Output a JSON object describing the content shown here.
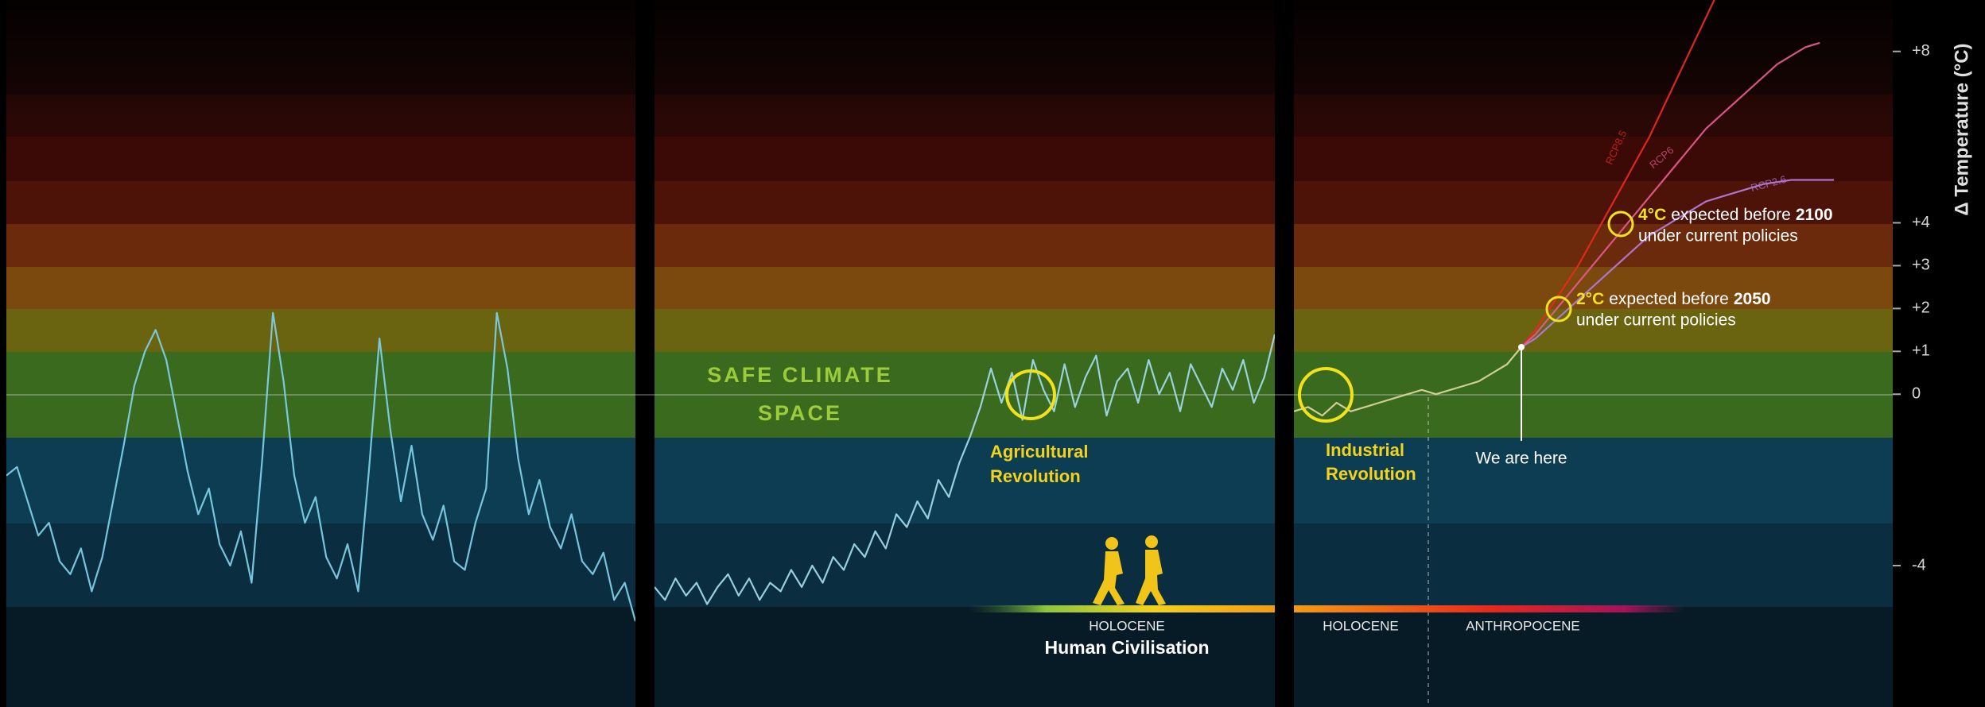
{
  "chart_data": [
    {
      "type": "line",
      "ylim": [
        -7.3,
        9.2
      ],
      "series": [
        {
          "color": "#7ccde6",
          "values": [
            -1.9,
            -1.7,
            -2.5,
            -3.3,
            -3.0,
            -3.9,
            -4.2,
            -3.6,
            -4.6,
            -3.8,
            -2.5,
            -1.2,
            0.2,
            1.0,
            1.5,
            0.8,
            -0.5,
            -1.8,
            -2.8,
            -2.2,
            -3.5,
            -4.0,
            -3.2,
            -4.4,
            -1.5,
            1.9,
            0.3,
            -1.9,
            -3.0,
            -2.4,
            -3.8,
            -4.3,
            -3.5,
            -4.6,
            -1.8,
            1.3,
            -0.8,
            -2.5,
            -1.2,
            -2.8,
            -3.4,
            -2.6,
            -3.9,
            -4.1,
            -3.0,
            -2.2,
            1.9,
            0.6,
            -1.5,
            -2.8,
            -2.0,
            -3.1,
            -3.6,
            -2.8,
            -3.9,
            -4.2,
            -3.7,
            -4.8,
            -4.4,
            -5.3
          ]
        }
      ]
    },
    {
      "type": "line",
      "ylim": [
        -7.3,
        9.2
      ],
      "series": [
        {
          "color": "#9fd8e8",
          "values": [
            -4.5,
            -4.8,
            -4.3,
            -4.7,
            -4.4,
            -4.9,
            -4.5,
            -4.2,
            -4.7,
            -4.3,
            -4.8,
            -4.4,
            -4.6,
            -4.1,
            -4.5,
            -4.0,
            -4.4,
            -3.8,
            -4.1,
            -3.5,
            -3.8,
            -3.2,
            -3.6,
            -2.8,
            -3.1,
            -2.5,
            -2.9,
            -2.0,
            -2.4,
            -1.6,
            -1.0,
            -0.3,
            0.6,
            -0.2,
            0.5,
            -0.6,
            0.8,
            0.1,
            -0.4,
            0.7,
            -0.3,
            0.4,
            0.9,
            -0.5,
            0.3,
            0.6,
            -0.2,
            0.8,
            0.0,
            0.5,
            -0.4,
            0.7,
            0.2,
            -0.3,
            0.6,
            0.1,
            0.8,
            -0.2,
            0.4,
            1.4
          ]
        }
      ]
    },
    {
      "type": "line",
      "ylim": [
        -7.3,
        9.2
      ],
      "ylabel": "Δ Temperature (°C)",
      "yticks": [
        {
          "value": 8,
          "label": "+8"
        },
        {
          "value": 4,
          "label": "+4"
        },
        {
          "value": 3,
          "label": "+3"
        },
        {
          "value": 2,
          "label": "+2"
        },
        {
          "value": 1,
          "label": "+1"
        },
        0,
        -4
      ],
      "series": [
        {
          "color": "#d8d49a",
          "values": [
            -0.4,
            -0.3,
            -0.5,
            -0.2,
            -0.4,
            -0.3,
            -0.2,
            -0.1,
            0.0,
            0.1,
            0.0,
            0.1,
            0.2,
            0.3,
            0.5,
            0.7,
            1.1,
            null,
            null,
            null,
            null,
            null,
            null,
            null,
            null,
            null,
            null,
            null,
            null,
            null,
            null,
            null,
            null,
            null,
            null,
            null,
            null,
            null,
            null,
            null
          ]
        },
        {
          "name": "RCP8.5",
          "color": "#e8291c",
          "values": [
            null,
            null,
            null,
            null,
            null,
            null,
            null,
            null,
            null,
            null,
            null,
            null,
            null,
            null,
            null,
            null,
            1.1,
            1.5,
            2.0,
            2.5,
            3.0,
            3.6,
            4.2,
            4.8,
            5.4,
            6.0,
            6.7,
            7.4,
            8.1,
            8.8,
            9.5,
            null,
            null,
            null,
            null,
            null,
            null,
            null,
            null,
            null
          ]
        },
        {
          "name": "RCP6",
          "color": "#e05a8c",
          "values": [
            null,
            null,
            null,
            null,
            null,
            null,
            null,
            null,
            null,
            null,
            null,
            null,
            null,
            null,
            null,
            null,
            1.1,
            1.4,
            1.8,
            2.2,
            2.6,
            3.0,
            3.4,
            3.8,
            4.2,
            4.6,
            5.0,
            5.4,
            5.8,
            6.2,
            6.5,
            6.8,
            7.1,
            7.4,
            7.7,
            7.9,
            8.1,
            8.2,
            null,
            null
          ]
        },
        {
          "name": "RCP2.6",
          "color": "#b07ad8",
          "values": [
            null,
            null,
            null,
            null,
            null,
            null,
            null,
            null,
            null,
            null,
            null,
            null,
            null,
            null,
            null,
            null,
            1.1,
            1.3,
            1.6,
            1.9,
            2.2,
            2.5,
            2.8,
            3.1,
            3.4,
            3.7,
            3.9,
            4.1,
            4.3,
            4.5,
            4.6,
            4.7,
            4.8,
            4.9,
            4.95,
            5.0,
            5.0,
            5.0,
            5.0,
            null
          ]
        }
      ]
    }
  ],
  "annotations": {
    "safe_climate": [
      "SAFE CLIMATE",
      "SPACE"
    ],
    "agricultural": [
      "Agricultural",
      "Revolution"
    ],
    "industrial": [
      "Industrial",
      "Revolution"
    ],
    "we_are_here": "We are here",
    "note_4c": {
      "lead": "4°C",
      "mid": "expected before",
      "year": "2100",
      "line2": "under current policies"
    },
    "note_2c": {
      "lead": "2°C",
      "mid": "expected before",
      "year": "2050",
      "line2": "under current policies"
    },
    "holocene_1": "HOLOCENE",
    "human_civilisation": "Human Civilisation",
    "holocene_2": "HOLOCENE",
    "anthropocene": "ANTHROPOCENE"
  }
}
